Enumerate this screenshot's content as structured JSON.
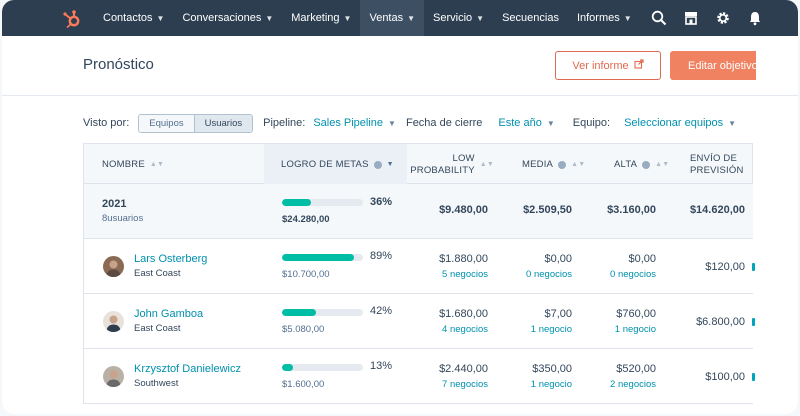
{
  "nav": {
    "items": [
      {
        "label": "Contactos",
        "caret": true,
        "active": false
      },
      {
        "label": "Conversaciones",
        "caret": true,
        "active": false
      },
      {
        "label": "Marketing",
        "caret": true,
        "active": false
      },
      {
        "label": "Ventas",
        "caret": true,
        "active": true
      },
      {
        "label": "Servicio",
        "caret": true,
        "active": false
      },
      {
        "label": "Secuencias",
        "caret": false,
        "active": false
      },
      {
        "label": "Informes",
        "caret": true,
        "active": false
      }
    ],
    "icons": [
      "search-icon",
      "marketplace-icon",
      "settings-icon",
      "notifications-icon"
    ]
  },
  "header": {
    "title": "Pronóstico",
    "view_report_label": "Ver informe",
    "edit_goals_label": "Editar objetivos"
  },
  "filters": {
    "view_by_label": "Visto por:",
    "view_by_options": [
      "Equipos",
      "Usuarios"
    ],
    "view_by_selected": "Usuarios",
    "pipeline_label": "Pipeline:",
    "pipeline_value": "Sales Pipeline",
    "close_date_label": "Fecha de cierre",
    "close_date_value": "Este año",
    "team_label": "Equipo:",
    "team_value": "Seleccionar equipos"
  },
  "table": {
    "headers": {
      "name": "NOMBRE",
      "goal": "LOGRO DE METAS",
      "low_line1": "LOW",
      "low_line2": "PROBABILITY",
      "media": "MEDIA",
      "alta": "ALTA",
      "forecast_line1": "ENVÍO DE",
      "forecast_line2": "PREVISIÓN"
    },
    "total": {
      "name": "2021",
      "sub": "8usuarios",
      "goal_pct": "36%",
      "goal_fraction": 0.36,
      "goal_amount": "$24.280,00",
      "low": "$9.480,00",
      "media": "$2.509,50",
      "alta": "$3.160,00",
      "forecast": "$14.620,00"
    },
    "rows": [
      {
        "name": "Lars Osterberg",
        "region": "East Coast",
        "goal_pct": "89%",
        "goal_fraction": 0.89,
        "goal_amount": "$10.700,00",
        "low": "$1.880,00",
        "low_deals": "5 negocios",
        "media": "$0,00",
        "media_deals": "0 negocios",
        "alta": "$0,00",
        "alta_deals": "0 negocios",
        "forecast": "$120,00"
      },
      {
        "name": "John Gamboa",
        "region": "East Coast",
        "goal_pct": "42%",
        "goal_fraction": 0.42,
        "goal_amount": "$5.080,00",
        "low": "$1.680,00",
        "low_deals": "4 negocios",
        "media": "$7,00",
        "media_deals": "1 negocio",
        "alta": "$760,00",
        "alta_deals": "1 negocio",
        "forecast": "$6.800,00"
      },
      {
        "name": "Krzysztof Danielewicz",
        "region": "Southwest",
        "goal_pct": "13%",
        "goal_fraction": 0.13,
        "goal_amount": "$1.600,00",
        "low": "$2.440,00",
        "low_deals": "7 negocios",
        "media": "$350,00",
        "media_deals": "1 negocio",
        "alta": "$520,00",
        "alta_deals": "2 negocios",
        "forecast": "$100,00"
      }
    ]
  },
  "colors": {
    "nav_bg": "#2d3e50",
    "accent": "#f08261",
    "link": "#0091ae",
    "progress": "#00bda5"
  }
}
